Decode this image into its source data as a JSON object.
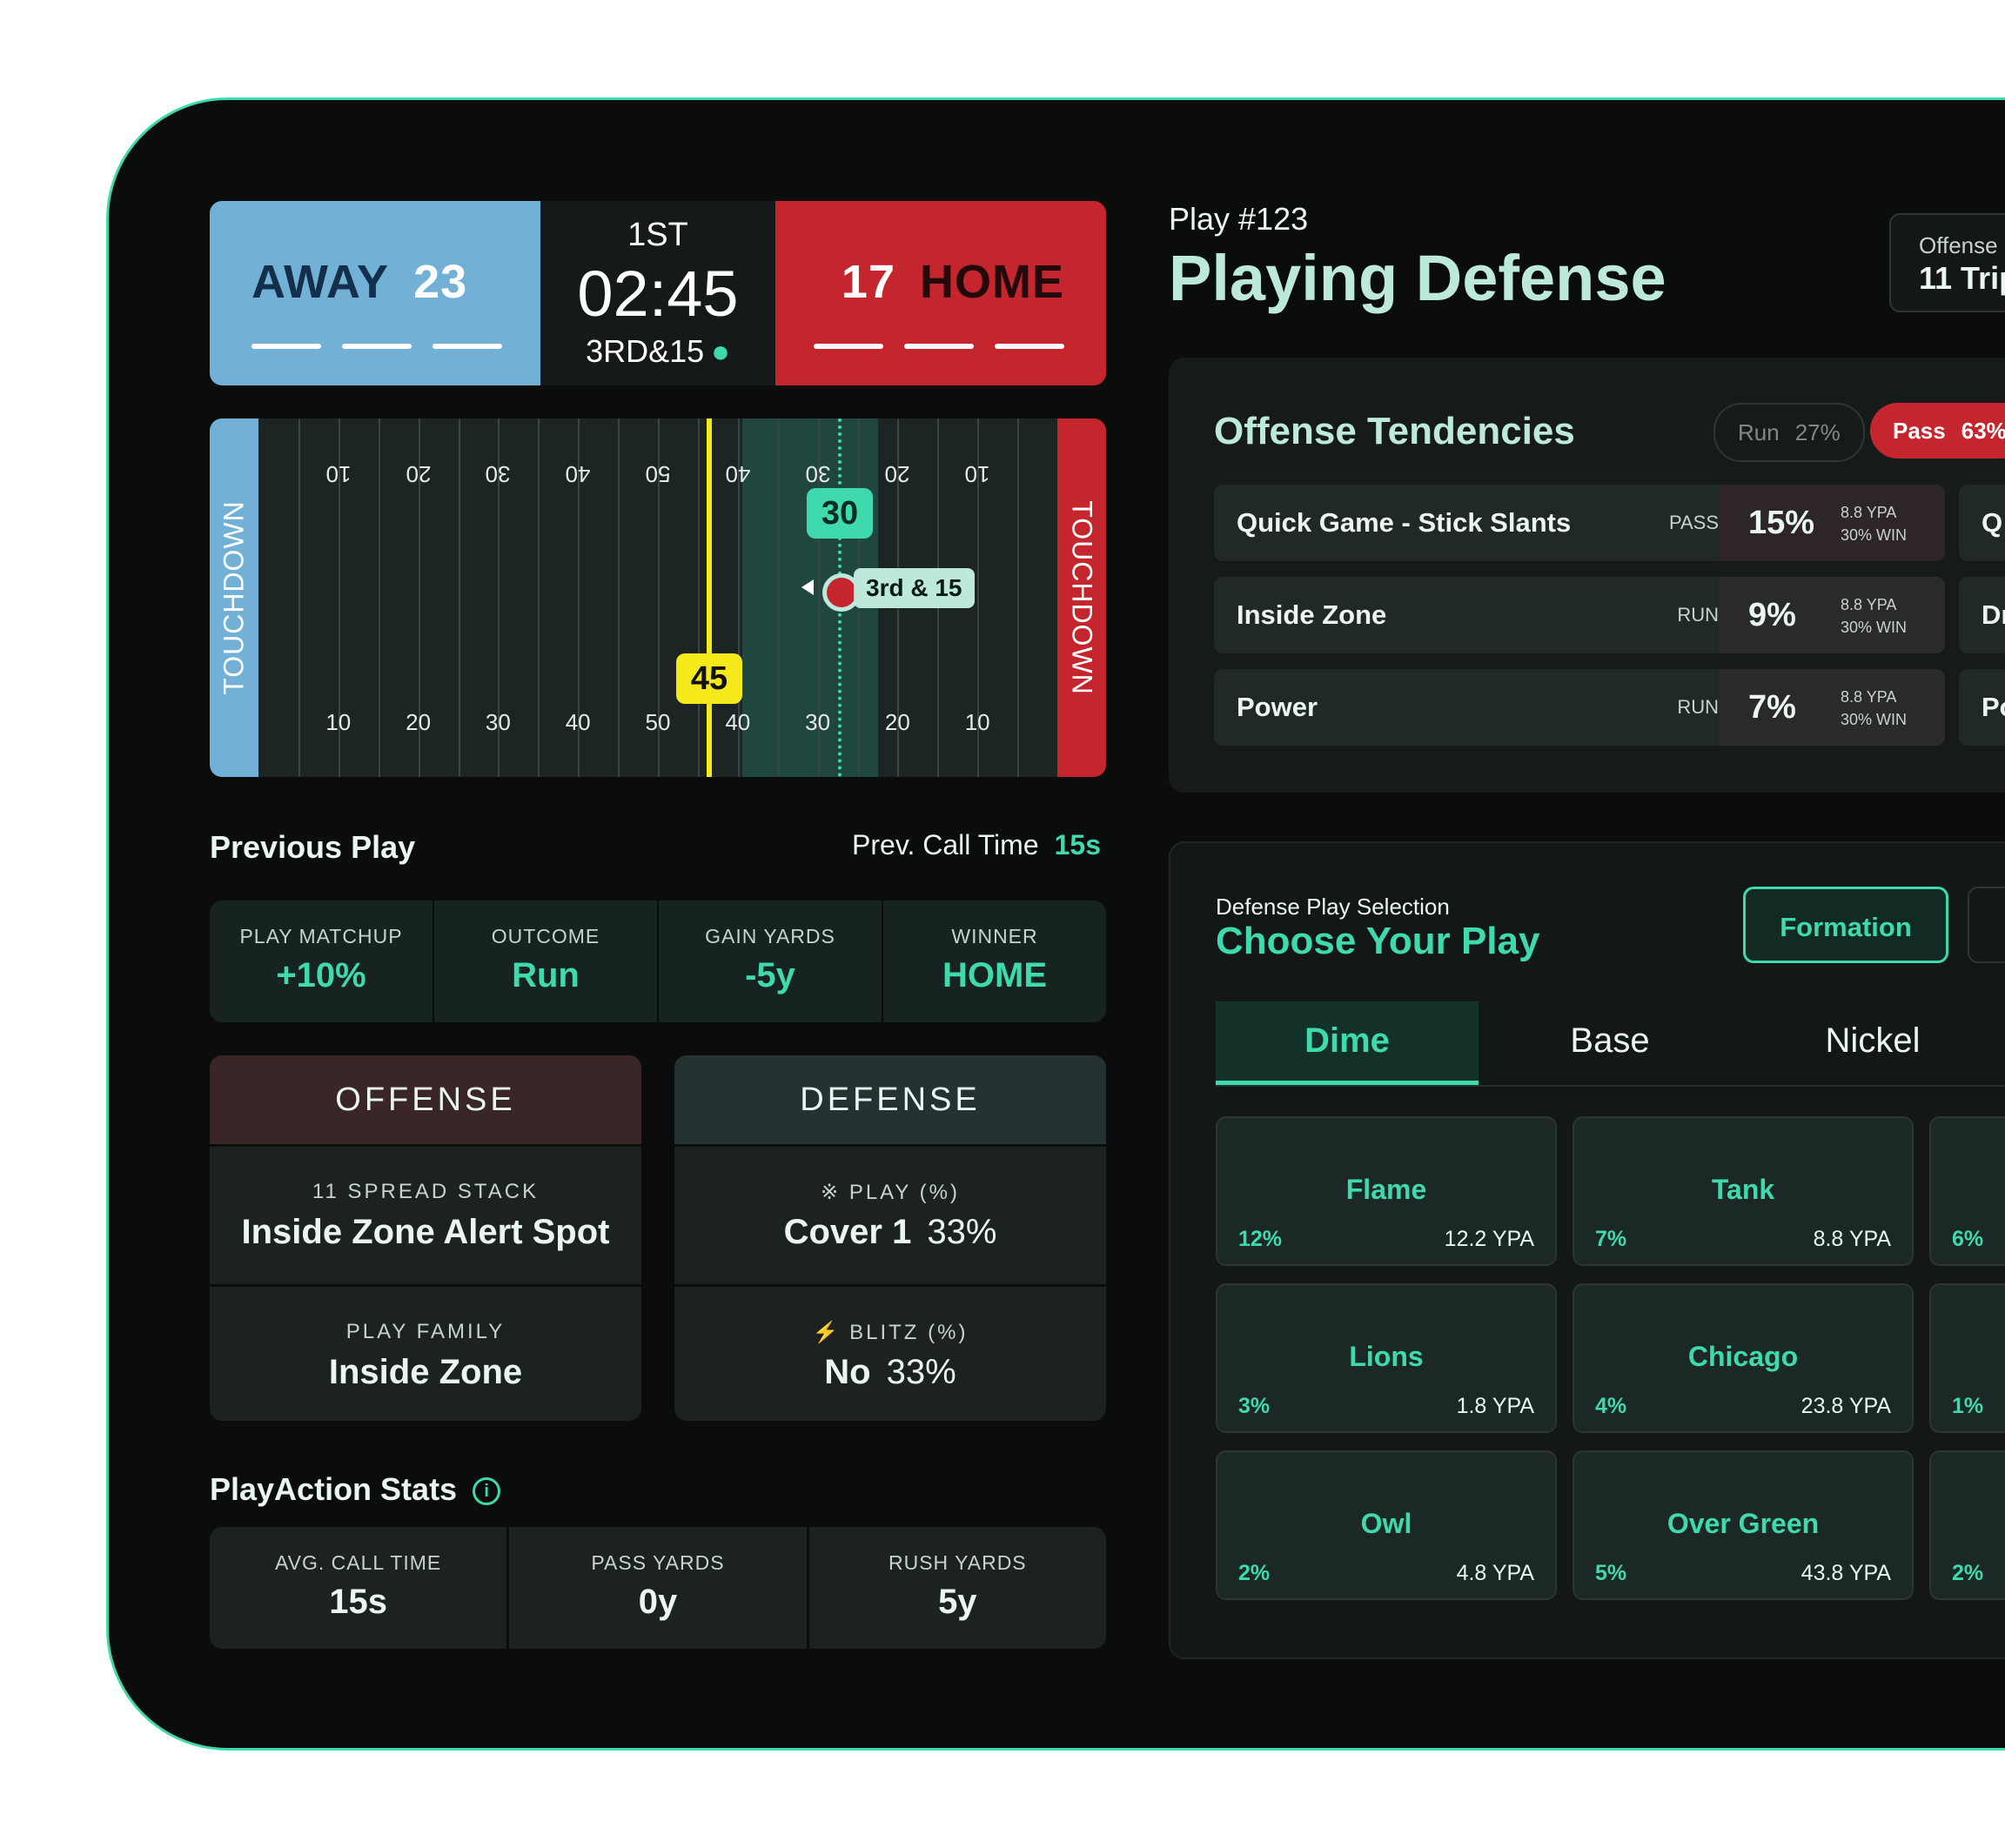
{
  "scoreboard": {
    "away": {
      "name": "AWAY",
      "score": "23"
    },
    "home": {
      "name": "HOME",
      "score": "17"
    },
    "quarter": "1ST",
    "clock": "02:45",
    "down": "3RD&15"
  },
  "field": {
    "endzone_left": "TOUCHDOWN",
    "endzone_right": "TOUCHDOWN",
    "yard_numbers": [
      "10",
      "20",
      "30",
      "40",
      "50",
      "40",
      "30",
      "20",
      "10"
    ],
    "line_of_scrimmage_tag": "45",
    "first_down_tag": "30",
    "ball_tag": "3rd & 15"
  },
  "previous_play": {
    "title": "Previous Play",
    "call_time_label": "Prev. Call Time",
    "call_time_value": "15s",
    "cells": [
      {
        "label": "PLAY MATCHUP",
        "value": "+10%"
      },
      {
        "label": "OUTCOME",
        "value": "Run"
      },
      {
        "label": "GAIN YARDS",
        "value": "-5y"
      },
      {
        "label": "WINNER",
        "value": "HOME"
      }
    ]
  },
  "offense_card": {
    "title": "OFFENSE",
    "formation_label": "11 SPREAD STACK",
    "play_name": "Inside Zone Alert Spot",
    "family_label": "PLAY FAMILY",
    "family_value": "Inside Zone"
  },
  "defense_card": {
    "title": "DEFENSE",
    "play_label": "PLAY (%)",
    "play_value": "Cover 1",
    "play_pct": "33%",
    "blitz_label": "BLITZ (%)",
    "blitz_value": "No",
    "blitz_pct": "33%"
  },
  "playaction": {
    "title": "PlayAction Stats",
    "cells": [
      {
        "label": "AVG. CALL TIME",
        "value": "15s"
      },
      {
        "label": "PASS YARDS",
        "value": "0y"
      },
      {
        "label": "RUSH YARDS",
        "value": "5y"
      }
    ]
  },
  "header": {
    "play_number": "Play #123",
    "title": "Playing Defense",
    "offense_box_label": "Offense",
    "offense_box_value": "11 Trip"
  },
  "tendencies": {
    "title": "Offense Tendencies",
    "run_label": "Run",
    "run_pct": "27%",
    "pass_label": "Pass",
    "pass_pct": "63%",
    "rows": [
      {
        "name": "Quick Game - Stick Slants",
        "type": "PASS",
        "pct": "15%",
        "ypa": "8.8 YPA",
        "win": "30% WIN",
        "next": "Q"
      },
      {
        "name": "Inside Zone",
        "type": "RUN",
        "pct": "9%",
        "ypa": "8.8 YPA",
        "win": "30% WIN",
        "next": "Dr"
      },
      {
        "name": "Power",
        "type": "RUN",
        "pct": "7%",
        "ypa": "8.8 YPA",
        "win": "30% WIN",
        "next": "Po"
      }
    ]
  },
  "selection": {
    "subtitle": "Defense Play Selection",
    "title": "Choose Your Play",
    "formation_button": "Formation",
    "tabs": [
      "Dime",
      "Base",
      "Nickel"
    ],
    "plays": [
      {
        "name": "Flame",
        "pct": "12%",
        "ypa": "12.2 YPA"
      },
      {
        "name": "Tank",
        "pct": "7%",
        "ypa": "8.8 YPA"
      },
      {
        "name": "",
        "pct": "6%",
        "ypa": ""
      },
      {
        "name": "Lions",
        "pct": "3%",
        "ypa": "1.8 YPA"
      },
      {
        "name": "Chicago",
        "pct": "4%",
        "ypa": "23.8 YPA"
      },
      {
        "name": "",
        "pct": "1%",
        "ypa": ""
      },
      {
        "name": "Owl",
        "pct": "2%",
        "ypa": "4.8 YPA"
      },
      {
        "name": "Over Green",
        "pct": "5%",
        "ypa": "43.8 YPA"
      },
      {
        "name": "",
        "pct": "2%",
        "ypa": ""
      }
    ]
  },
  "colors": {
    "accent": "#3fd9ae",
    "away": "#72b1d5",
    "home": "#c5262d",
    "scrimmage": "#f5e91c"
  }
}
